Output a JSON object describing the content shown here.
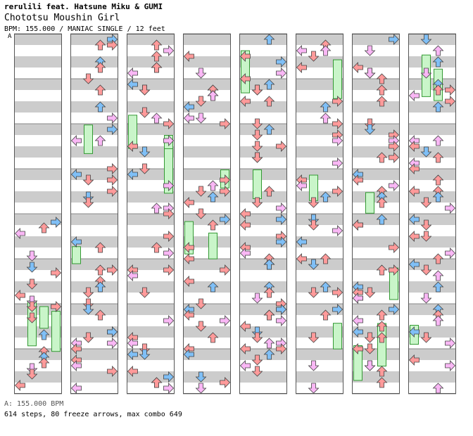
{
  "header": {
    "artist": "rerulili feat. Hatsune Miku & GUMI",
    "title": "Chototsu Moushin Girl",
    "meta": "BPM: 155.000 / MANIAC SINGLE / 12 feet",
    "marker": "A"
  },
  "footer": {
    "bpm": "A: 155.000 BPM",
    "stats": "614 steps, 80 freeze arrows, max combo 649"
  },
  "colors": {
    "stripe": "#cccccc",
    "border": "#555555",
    "arrow_red": "#ff9a9a",
    "arrow_blue": "#7fbff6",
    "arrow_pink": "#f9b7f5",
    "freeze_fill": "#c9f5c9",
    "freeze_stroke": "#339933"
  },
  "icons": [
    "left-arrow-icon",
    "down-arrow-icon",
    "up-arrow-icon",
    "right-arrow-icon",
    "freeze-arrow-icon"
  ]
}
